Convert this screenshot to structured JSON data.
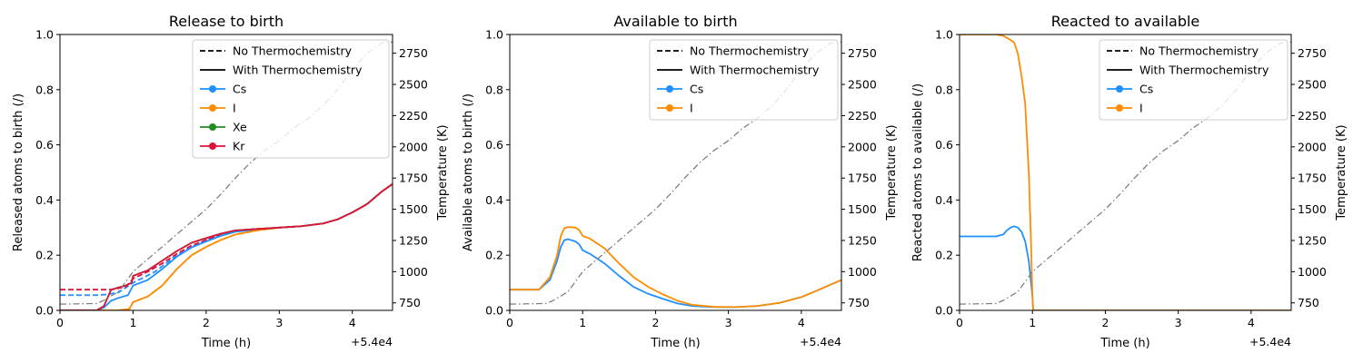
{
  "chart_data": [
    {
      "type": "line",
      "title": "Release to birth",
      "xlabel": "Time (h)",
      "ylabel": "Released atoms to birth (/)",
      "y2label": "Temperature (K)",
      "x_offset_text": "+5.4e4",
      "xlim": [
        0,
        4.55
      ],
      "ylim": [
        0,
        1.0
      ],
      "y2lim": [
        690,
        2900
      ],
      "xticks": [
        "0",
        "1",
        "2",
        "3",
        "4"
      ],
      "yticks": [
        "0.0",
        "0.2",
        "0.4",
        "0.6",
        "0.8",
        "1.0"
      ],
      "y2ticks": [
        "750",
        "1000",
        "1250",
        "1500",
        "1750",
        "2000",
        "2250",
        "2500",
        "2750"
      ],
      "legend": {
        "position": "upper right",
        "entries": [
          {
            "label": "No Thermochemistry",
            "style": "dashed",
            "color": "#000000"
          },
          {
            "label": "With Thermochemistry",
            "style": "solid",
            "color": "#000000"
          },
          {
            "label": "Cs",
            "style": "marker",
            "color": "#1e90ff"
          },
          {
            "label": "I",
            "style": "marker",
            "color": "#ff8c00"
          },
          {
            "label": "Xe",
            "style": "marker",
            "color": "#228b22"
          },
          {
            "label": "Kr",
            "style": "marker",
            "color": "#dc143c"
          }
        ]
      },
      "series": [
        {
          "color": "#1e90ff",
          "style": "dashed",
          "x": [
            0,
            0.5,
            0.65,
            0.8,
            1.0,
            1.3,
            1.6,
            1.8,
            2.0,
            2.2,
            2.4,
            2.7,
            3.0,
            3.3,
            3.6,
            3.8,
            4.0,
            4.2,
            4.4,
            4.55
          ],
          "y": [
            0.055,
            0.055,
            0.058,
            0.065,
            0.1,
            0.14,
            0.2,
            0.23,
            0.255,
            0.275,
            0.288,
            0.295,
            0.3,
            0.305,
            0.315,
            0.33,
            0.355,
            0.385,
            0.43,
            0.458
          ]
        },
        {
          "color": "#ff8c00",
          "style": "dashed",
          "x": [
            0,
            0.5,
            0.8,
            0.95,
            1.0,
            1.2,
            1.4,
            1.6,
            1.8,
            2.0,
            2.2,
            2.4,
            2.7,
            3.0,
            3.3,
            3.6,
            3.8,
            4.0,
            4.2,
            4.4,
            4.55
          ],
          "y": [
            0.0,
            0.0,
            0.0,
            0.005,
            0.03,
            0.05,
            0.09,
            0.15,
            0.2,
            0.23,
            0.255,
            0.275,
            0.29,
            0.3,
            0.305,
            0.315,
            0.33,
            0.355,
            0.385,
            0.43,
            0.458
          ]
        },
        {
          "color": "#dc143c",
          "style": "dashed",
          "x": [
            0,
            0.5,
            0.7,
            0.9,
            1.0,
            1.2,
            1.4,
            1.6,
            1.8,
            2.0,
            2.2,
            2.4,
            2.7,
            3.0,
            3.3,
            3.6,
            3.8,
            4.0,
            4.2,
            4.4,
            4.55
          ],
          "y": [
            0.075,
            0.075,
            0.075,
            0.085,
            0.115,
            0.14,
            0.17,
            0.205,
            0.235,
            0.255,
            0.273,
            0.288,
            0.295,
            0.3,
            0.305,
            0.315,
            0.33,
            0.355,
            0.385,
            0.43,
            0.458
          ]
        },
        {
          "color": "#1e90ff",
          "style": "solid",
          "x": [
            0,
            0.5,
            0.6,
            0.7,
            0.8,
            0.93,
            1.0,
            1.2,
            1.4,
            1.6,
            1.8,
            2.0,
            2.2,
            2.4,
            2.7,
            3.0,
            3.3,
            3.6,
            3.8,
            4.0,
            4.2,
            4.4,
            4.55
          ],
          "y": [
            0.0,
            0.0,
            0.01,
            0.035,
            0.045,
            0.055,
            0.09,
            0.11,
            0.15,
            0.195,
            0.228,
            0.25,
            0.27,
            0.285,
            0.293,
            0.3,
            0.305,
            0.315,
            0.33,
            0.355,
            0.385,
            0.43,
            0.458
          ]
        },
        {
          "color": "#ff8c00",
          "style": "solid",
          "x": [
            0,
            0.5,
            0.8,
            0.95,
            1.0,
            1.2,
            1.4,
            1.6,
            1.8,
            2.0,
            2.2,
            2.4,
            2.7,
            3.0,
            3.3,
            3.6,
            3.8,
            4.0,
            4.2,
            4.4,
            4.55
          ],
          "y": [
            0.0,
            0.0,
            0.0,
            0.005,
            0.03,
            0.05,
            0.09,
            0.15,
            0.2,
            0.23,
            0.255,
            0.275,
            0.29,
            0.3,
            0.305,
            0.315,
            0.33,
            0.355,
            0.385,
            0.43,
            0.458
          ]
        },
        {
          "color": "#228b22",
          "style": "solid",
          "x": [
            0,
            0.5,
            0.6,
            0.7,
            0.9,
            0.98,
            1.0,
            1.2,
            1.4,
            1.6,
            1.8,
            2.0,
            2.2,
            2.4,
            2.7,
            3.0,
            3.3,
            3.6,
            3.8,
            4.0,
            4.2,
            4.4,
            4.55
          ],
          "y": [
            0.0,
            0.0,
            0.015,
            0.075,
            0.09,
            0.1,
            0.125,
            0.145,
            0.18,
            0.215,
            0.245,
            0.262,
            0.278,
            0.29,
            0.295,
            0.3,
            0.305,
            0.315,
            0.33,
            0.355,
            0.385,
            0.43,
            0.458
          ]
        },
        {
          "color": "#dc143c",
          "style": "solid",
          "x": [
            0,
            0.5,
            0.6,
            0.7,
            0.9,
            0.98,
            1.0,
            1.2,
            1.4,
            1.6,
            1.8,
            2.0,
            2.2,
            2.4,
            2.7,
            3.0,
            3.3,
            3.6,
            3.8,
            4.0,
            4.2,
            4.4,
            4.55
          ],
          "y": [
            0.0,
            0.0,
            0.015,
            0.075,
            0.09,
            0.1,
            0.125,
            0.145,
            0.18,
            0.215,
            0.245,
            0.262,
            0.278,
            0.29,
            0.295,
            0.3,
            0.305,
            0.315,
            0.33,
            0.355,
            0.385,
            0.43,
            0.458
          ]
        },
        {
          "color": "#808080",
          "style": "dashdot",
          "axis": "right",
          "x": [
            0,
            0.5,
            0.6,
            0.8,
            1.0,
            1.2,
            1.4,
            1.6,
            1.8,
            2.0,
            2.2,
            2.4,
            2.6,
            2.8,
            3.0,
            3.2,
            3.4,
            3.6,
            3.8,
            4.0,
            4.2,
            4.4,
            4.55
          ],
          "y": [
            740,
            745,
            770,
            840,
            1000,
            1100,
            1200,
            1300,
            1400,
            1500,
            1620,
            1750,
            1870,
            1970,
            2050,
            2150,
            2230,
            2330,
            2460,
            2620,
            2750,
            2830,
            2840
          ]
        }
      ]
    },
    {
      "type": "line",
      "title": "Available to birth",
      "xlabel": "Time (h)",
      "ylabel": "Available atoms to birth (/)",
      "y2label": "Temperature (K)",
      "x_offset_text": "+5.4e4",
      "xlim": [
        0,
        4.55
      ],
      "ylim": [
        0,
        1.0
      ],
      "y2lim": [
        690,
        2900
      ],
      "xticks": [
        "0",
        "1",
        "2",
        "3",
        "4"
      ],
      "yticks": [
        "0.0",
        "0.2",
        "0.4",
        "0.6",
        "0.8",
        "1.0"
      ],
      "y2ticks": [
        "750",
        "1000",
        "1250",
        "1500",
        "1750",
        "2000",
        "2250",
        "2500",
        "2750"
      ],
      "legend": {
        "position": "upper right",
        "entries": [
          {
            "label": "No Thermochemistry",
            "style": "dashed",
            "color": "#000000"
          },
          {
            "label": "With Thermochemistry",
            "style": "solid",
            "color": "#000000"
          },
          {
            "label": "Cs",
            "style": "marker",
            "color": "#1e90ff"
          },
          {
            "label": "I",
            "style": "marker",
            "color": "#ff8c00"
          }
        ]
      },
      "series": [
        {
          "color": "#1e90ff",
          "style": "solid",
          "x": [
            0,
            0.4,
            0.55,
            0.65,
            0.7,
            0.75,
            0.8,
            0.9,
            0.95,
            1.0,
            1.1,
            1.3,
            1.5,
            1.7,
            1.9,
            2.1,
            2.3,
            2.5,
            2.8,
            3.1,
            3.4,
            3.7,
            4.0,
            4.2,
            4.4,
            4.55
          ],
          "y": [
            0.075,
            0.075,
            0.11,
            0.18,
            0.23,
            0.255,
            0.258,
            0.25,
            0.24,
            0.218,
            0.205,
            0.17,
            0.125,
            0.085,
            0.06,
            0.042,
            0.025,
            0.016,
            0.012,
            0.012,
            0.016,
            0.027,
            0.048,
            0.07,
            0.093,
            0.11
          ]
        },
        {
          "color": "#ff8c00",
          "style": "solid",
          "x": [
            0,
            0.4,
            0.55,
            0.65,
            0.7,
            0.75,
            0.8,
            0.9,
            0.95,
            1.0,
            1.1,
            1.3,
            1.5,
            1.7,
            1.9,
            2.1,
            2.3,
            2.5,
            2.8,
            3.1,
            3.4,
            3.7,
            4.0,
            4.2,
            4.4,
            4.55
          ],
          "y": [
            0.075,
            0.075,
            0.12,
            0.2,
            0.27,
            0.298,
            0.302,
            0.3,
            0.292,
            0.27,
            0.26,
            0.225,
            0.17,
            0.12,
            0.085,
            0.058,
            0.035,
            0.02,
            0.013,
            0.012,
            0.016,
            0.027,
            0.048,
            0.07,
            0.093,
            0.11
          ]
        },
        {
          "color": "#808080",
          "style": "dashdot",
          "axis": "right",
          "x": [
            0,
            0.5,
            0.6,
            0.8,
            1.0,
            1.2,
            1.4,
            1.6,
            1.8,
            2.0,
            2.2,
            2.4,
            2.6,
            2.8,
            3.0,
            3.2,
            3.4,
            3.6,
            3.8,
            4.0,
            4.2,
            4.4,
            4.55
          ],
          "y": [
            740,
            745,
            770,
            840,
            1000,
            1100,
            1200,
            1300,
            1400,
            1500,
            1620,
            1750,
            1870,
            1970,
            2050,
            2150,
            2230,
            2330,
            2460,
            2620,
            2750,
            2830,
            2840
          ]
        }
      ]
    },
    {
      "type": "line",
      "title": "Reacted to available",
      "xlabel": "Time (h)",
      "ylabel": "Reacted atoms to available (/)",
      "y2label": "Temperature (K)",
      "x_offset_text": "+5.4e4",
      "xlim": [
        0,
        4.55
      ],
      "ylim": [
        0,
        1.0
      ],
      "y2lim": [
        690,
        2900
      ],
      "xticks": [
        "0",
        "1",
        "2",
        "3",
        "4"
      ],
      "yticks": [
        "0.0",
        "0.2",
        "0.4",
        "0.6",
        "0.8",
        "1.0"
      ],
      "y2ticks": [
        "750",
        "1000",
        "1250",
        "1500",
        "1750",
        "2000",
        "2250",
        "2500",
        "2750"
      ],
      "legend": {
        "position": "upper right",
        "entries": [
          {
            "label": "No Thermochemistry",
            "style": "dashed",
            "color": "#000000"
          },
          {
            "label": "With Thermochemistry",
            "style": "solid",
            "color": "#000000"
          },
          {
            "label": "Cs",
            "style": "marker",
            "color": "#1e90ff"
          },
          {
            "label": "I",
            "style": "marker",
            "color": "#ff8c00"
          }
        ]
      },
      "series": [
        {
          "color": "#1e90ff",
          "style": "solid",
          "x": [
            0,
            0.5,
            0.6,
            0.65,
            0.7,
            0.75,
            0.8,
            0.85,
            0.9,
            0.95,
            1.0,
            1.01,
            1.1,
            2.0,
            3.0,
            4.0,
            4.55
          ],
          "y": [
            0.268,
            0.268,
            0.275,
            0.29,
            0.3,
            0.305,
            0.3,
            0.285,
            0.25,
            0.18,
            0.05,
            0.0,
            0.0,
            0.0,
            0.0,
            0.0,
            0.0
          ]
        },
        {
          "color": "#ff8c00",
          "style": "solid",
          "x": [
            0,
            0.5,
            0.6,
            0.7,
            0.75,
            0.8,
            0.85,
            0.9,
            0.95,
            0.98,
            1.0,
            1.01,
            1.1,
            2.0,
            3.0,
            4.0,
            4.55
          ],
          "y": [
            1.0,
            1.0,
            0.995,
            0.98,
            0.97,
            0.93,
            0.85,
            0.75,
            0.5,
            0.25,
            0.05,
            0.0,
            0.0,
            0.0,
            0.0,
            0.0,
            0.0
          ]
        },
        {
          "color": "#808080",
          "style": "dashdot",
          "axis": "right",
          "x": [
            0,
            0.5,
            0.6,
            0.8,
            1.0,
            1.2,
            1.4,
            1.6,
            1.8,
            2.0,
            2.2,
            2.4,
            2.6,
            2.8,
            3.0,
            3.2,
            3.4,
            3.6,
            3.8,
            4.0,
            4.2,
            4.4,
            4.55
          ],
          "y": [
            740,
            745,
            770,
            840,
            1000,
            1100,
            1200,
            1300,
            1400,
            1500,
            1620,
            1750,
            1870,
            1970,
            2050,
            2150,
            2230,
            2330,
            2460,
            2620,
            2750,
            2830,
            2840
          ]
        }
      ]
    }
  ]
}
